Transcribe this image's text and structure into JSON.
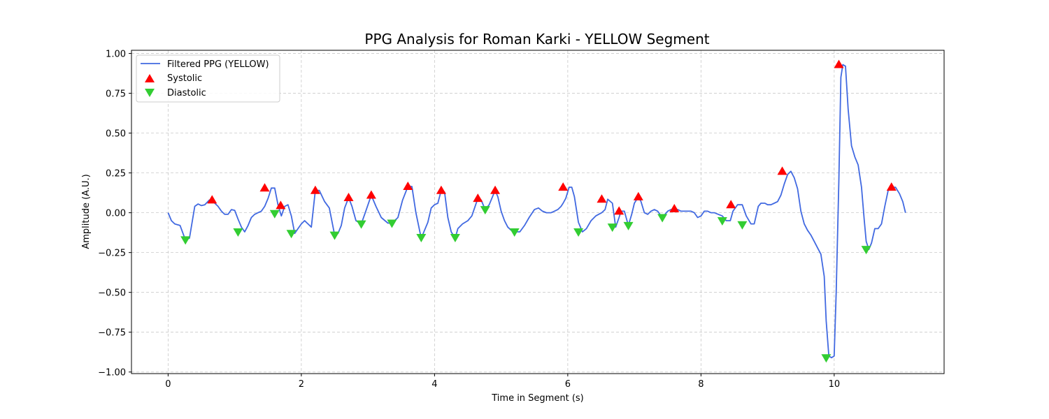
{
  "chart_data": {
    "type": "line",
    "title": "PPG Analysis for Roman Karki - YELLOW Segment",
    "xlabel": "Time in Segment (s)",
    "ylabel": "Amplitude (A.U.)",
    "xlim": [
      -0.55,
      11.65
    ],
    "ylim": [
      -1.01,
      1.02
    ],
    "xticks": [
      0,
      2,
      4,
      6,
      8,
      10
    ],
    "xtick_labels": [
      "0",
      "2",
      "4",
      "6",
      "8",
      "10"
    ],
    "yticks": [
      1.0,
      0.75,
      0.5,
      0.25,
      0.0,
      -0.25,
      -0.5,
      -0.75,
      -1.0
    ],
    "ytick_labels": [
      "1.00",
      "0.75",
      "0.50",
      "0.25",
      "0.00",
      "−0.25",
      "−0.50",
      "−0.75",
      "−1.00"
    ],
    "grid": true,
    "legend_position": "upper-left",
    "colors": {
      "line": "#4169e1",
      "systolic": "#ff0000",
      "diastolic": "#32cd32"
    },
    "series": [
      {
        "name": "Filtered PPG (YELLOW)",
        "kind": "line",
        "x": [
          0.0,
          0.05,
          0.1,
          0.18,
          0.26,
          0.32,
          0.4,
          0.45,
          0.5,
          0.55,
          0.62,
          0.66,
          0.7,
          0.75,
          0.8,
          0.85,
          0.9,
          0.95,
          1.0,
          1.05,
          1.1,
          1.15,
          1.2,
          1.25,
          1.3,
          1.35,
          1.4,
          1.45,
          1.5,
          1.55,
          1.6,
          1.65,
          1.7,
          1.75,
          1.8,
          1.85,
          1.9,
          1.95,
          2.0,
          2.05,
          2.1,
          2.15,
          2.21,
          2.27,
          2.35,
          2.42,
          2.5,
          2.55,
          2.6,
          2.65,
          2.71,
          2.76,
          2.82,
          2.9,
          2.96,
          3.05,
          3.12,
          3.2,
          3.3,
          3.36,
          3.45,
          3.52,
          3.6,
          3.66,
          3.72,
          3.8,
          3.85,
          3.9,
          3.95,
          4.0,
          4.05,
          4.1,
          4.15,
          4.2,
          4.25,
          4.31,
          4.35,
          4.42,
          4.5,
          4.56,
          4.65,
          4.7,
          4.76,
          4.82,
          4.91,
          4.95,
          5.0,
          5.05,
          5.1,
          5.15,
          5.2,
          5.28,
          5.35,
          5.42,
          5.5,
          5.56,
          5.62,
          5.68,
          5.75,
          5.8,
          5.85,
          5.9,
          5.93,
          5.97,
          6.02,
          6.06,
          6.1,
          6.16,
          6.22,
          6.28,
          6.35,
          6.42,
          6.51,
          6.56,
          6.6,
          6.67,
          6.72,
          6.77,
          6.8,
          6.85,
          6.91,
          6.96,
          7.0,
          7.06,
          7.1,
          7.15,
          7.2,
          7.25,
          7.3,
          7.35,
          7.42,
          7.5,
          7.55,
          7.6,
          7.65,
          7.7,
          7.75,
          7.8,
          7.85,
          7.9,
          7.95,
          8.0,
          8.05,
          8.1,
          8.15,
          8.2,
          8.26,
          8.32,
          8.38,
          8.44,
          8.48,
          8.55,
          8.62,
          8.68,
          8.75,
          8.8,
          8.86,
          8.9,
          8.96,
          9.0,
          9.05,
          9.1,
          9.15,
          9.2,
          9.25,
          9.3,
          9.35,
          9.4,
          9.45,
          9.5,
          9.55,
          9.6,
          9.65,
          9.7,
          9.75,
          9.8,
          9.85,
          9.88,
          9.92,
          9.96,
          10.0,
          10.03,
          10.07,
          10.1,
          10.13,
          10.17,
          10.21,
          10.26,
          10.31,
          10.36,
          10.41,
          10.45,
          10.48,
          10.52,
          10.56,
          10.61,
          10.66,
          10.71,
          10.76,
          10.81,
          10.86,
          10.92,
          10.98,
          11.03,
          11.07
        ],
        "y": [
          0.0,
          -0.05,
          -0.07,
          -0.08,
          -0.17,
          -0.16,
          0.04,
          0.055,
          0.045,
          0.05,
          0.08,
          0.08,
          0.06,
          0.04,
          0.01,
          -0.01,
          -0.01,
          0.02,
          0.015,
          -0.04,
          -0.09,
          -0.12,
          -0.08,
          -0.03,
          -0.01,
          0.0,
          0.01,
          0.04,
          0.09,
          0.155,
          0.155,
          0.05,
          -0.02,
          0.04,
          0.05,
          -0.02,
          -0.13,
          -0.1,
          -0.07,
          -0.05,
          -0.07,
          -0.09,
          0.14,
          0.14,
          0.07,
          0.03,
          -0.14,
          -0.13,
          -0.08,
          0.03,
          0.095,
          0.04,
          -0.05,
          -0.07,
          0.0,
          0.11,
          0.04,
          -0.03,
          -0.065,
          -0.065,
          -0.03,
          0.08,
          0.165,
          0.165,
          0.0,
          -0.16,
          -0.11,
          -0.06,
          0.03,
          0.05,
          0.06,
          0.14,
          0.13,
          -0.03,
          -0.12,
          -0.16,
          -0.1,
          -0.07,
          -0.05,
          -0.02,
          0.09,
          0.08,
          0.02,
          0.05,
          0.14,
          0.1,
          0.01,
          -0.05,
          -0.09,
          -0.11,
          -0.12,
          -0.12,
          -0.08,
          -0.03,
          0.02,
          0.03,
          0.01,
          0.0,
          0.0,
          0.01,
          0.02,
          0.04,
          0.06,
          0.09,
          0.16,
          0.16,
          0.1,
          -0.06,
          -0.12,
          -0.1,
          -0.05,
          -0.02,
          0.0,
          0.02,
          0.085,
          0.06,
          -0.09,
          -0.03,
          0.01,
          0.01,
          -0.08,
          -0.01,
          0.06,
          0.1,
          0.07,
          0.0,
          -0.01,
          0.01,
          0.02,
          0.01,
          -0.03,
          0.01,
          0.02,
          0.02,
          0.02,
          0.01,
          0.01,
          0.01,
          0.01,
          0.0,
          -0.03,
          -0.02,
          0.01,
          0.01,
          0.0,
          0.0,
          -0.01,
          -0.02,
          -0.05,
          -0.05,
          0.01,
          0.05,
          0.05,
          -0.02,
          -0.07,
          -0.07,
          0.04,
          0.06,
          0.06,
          0.05,
          0.05,
          0.06,
          0.07,
          0.11,
          0.18,
          0.24,
          0.26,
          0.22,
          0.15,
          0.01,
          -0.07,
          -0.11,
          -0.14,
          -0.18,
          -0.22,
          -0.26,
          -0.4,
          -0.68,
          -0.9,
          -0.91,
          -0.9,
          -0.5,
          0.2,
          0.85,
          0.93,
          0.92,
          0.65,
          0.42,
          0.35,
          0.3,
          0.16,
          -0.04,
          -0.18,
          -0.23,
          -0.19,
          -0.1,
          -0.1,
          -0.07,
          0.04,
          0.14,
          0.16,
          0.16,
          0.12,
          0.07,
          0.0
        ]
      },
      {
        "name": "Systolic",
        "kind": "marker",
        "marker": "triangle-up",
        "x": [
          0.66,
          1.45,
          1.69,
          2.21,
          2.71,
          3.05,
          3.6,
          4.1,
          4.65,
          4.91,
          5.93,
          6.51,
          6.77,
          7.06,
          7.6,
          8.45,
          9.22,
          10.07,
          10.86
        ],
        "y": [
          0.08,
          0.155,
          0.045,
          0.14,
          0.095,
          0.11,
          0.165,
          0.14,
          0.09,
          0.14,
          0.16,
          0.085,
          0.01,
          0.1,
          0.025,
          0.05,
          0.26,
          0.93,
          0.16
        ]
      },
      {
        "name": "Diastolic",
        "kind": "marker",
        "marker": "triangle-down",
        "x": [
          0.26,
          1.05,
          1.6,
          1.85,
          2.5,
          2.9,
          3.36,
          3.8,
          4.31,
          4.76,
          5.2,
          6.16,
          6.67,
          6.91,
          7.42,
          8.32,
          8.62,
          9.88,
          10.48
        ],
        "y": [
          -0.17,
          -0.12,
          -0.005,
          -0.13,
          -0.14,
          -0.07,
          -0.065,
          -0.155,
          -0.155,
          0.02,
          -0.12,
          -0.12,
          -0.09,
          -0.08,
          -0.03,
          -0.05,
          -0.075,
          -0.91,
          -0.23
        ]
      }
    ]
  }
}
